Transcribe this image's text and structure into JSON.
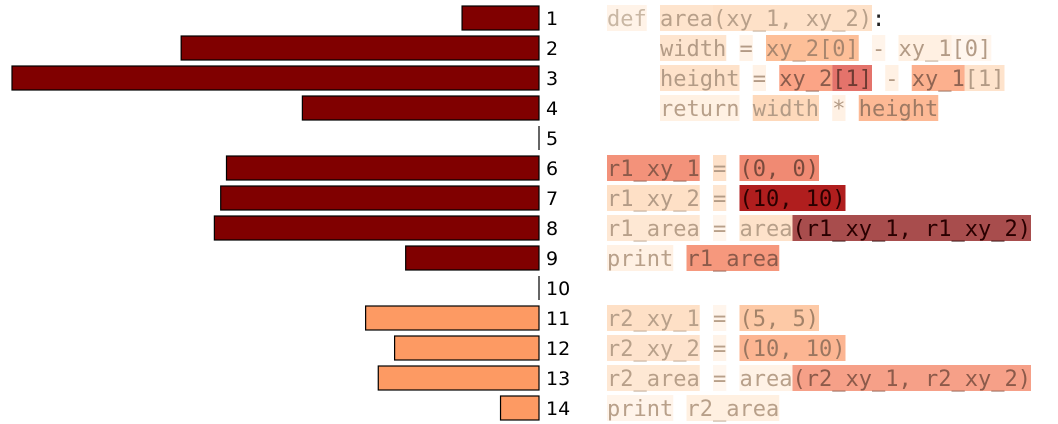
{
  "palette": {
    "high": "#800000",
    "low": "#fd9a63",
    "bar_stroke": "#000000"
  },
  "chart_data": {
    "type": "bar",
    "orientation": "horizontal",
    "title": "",
    "xlabel": "",
    "ylabel": "",
    "categories": [
      "1",
      "2",
      "3",
      "4",
      "5",
      "6",
      "7",
      "8",
      "9",
      "10",
      "11",
      "12",
      "13",
      "14"
    ],
    "values": [
      0.146,
      0.679,
      1.0,
      0.449,
      0,
      0.593,
      0.604,
      0.616,
      0.253,
      0,
      0.329,
      0.274,
      0.305,
      0.073
    ],
    "bar_group": [
      "high",
      "high",
      "high",
      "high",
      "none",
      "high",
      "high",
      "high",
      "high",
      "none",
      "low",
      "low",
      "low",
      "low"
    ]
  },
  "code": {
    "lines": [
      [
        {
          "t": "def",
          "bg": "#fff3e8",
          "fg": "#c9b7a4"
        },
        {
          "t": " ",
          "bg": "",
          "fg": ""
        },
        {
          "t": "area",
          "bg": "#fee4cd",
          "fg": "#b8a08a"
        },
        {
          "t": "(xy_1, xy_2)",
          "bg": "#fee1c8",
          "fg": "#b8a08a"
        },
        {
          "t": ":",
          "bg": "",
          "fg": "#222222"
        }
      ],
      [
        {
          "t": "    ",
          "bg": "",
          "fg": ""
        },
        {
          "t": "width",
          "bg": "#fee5cf",
          "fg": "#b39b86"
        },
        {
          "t": " ",
          "bg": "",
          "fg": ""
        },
        {
          "t": "=",
          "bg": "#fff2e6",
          "fg": "#b39b86"
        },
        {
          "t": " ",
          "bg": "",
          "fg": ""
        },
        {
          "t": "xy_2[0]",
          "bg": "#fdbf98",
          "fg": "#a8866e"
        },
        {
          "t": " ",
          "bg": "",
          "fg": ""
        },
        {
          "t": "-",
          "bg": "#fff4ea",
          "fg": "#b39b86"
        },
        {
          "t": " ",
          "bg": "",
          "fg": ""
        },
        {
          "t": "xy_1",
          "bg": "#fff0e2",
          "fg": "#b39b86"
        },
        {
          "t": "[0]",
          "bg": "#fff6ee",
          "fg": "#b39b86"
        }
      ],
      [
        {
          "t": "    ",
          "bg": "",
          "fg": ""
        },
        {
          "t": "height",
          "bg": "#fee2ca",
          "fg": "#b39b86"
        },
        {
          "t": " ",
          "bg": "",
          "fg": ""
        },
        {
          "t": "=",
          "bg": "#fff2e6",
          "fg": "#b39b86"
        },
        {
          "t": " ",
          "bg": "",
          "fg": ""
        },
        {
          "t": "xy_2",
          "bg": "#fba486",
          "fg": "#8a5c4c"
        },
        {
          "t": "[1]",
          "bg": "#e4736b",
          "fg": "#6e3a32"
        },
        {
          "t": " ",
          "bg": "",
          "fg": ""
        },
        {
          "t": "-",
          "bg": "#fff1e4",
          "fg": "#b39b86"
        },
        {
          "t": " ",
          "bg": "",
          "fg": ""
        },
        {
          "t": "xy_1",
          "bg": "#fcb08e",
          "fg": "#8f6452"
        },
        {
          "t": "[1]",
          "bg": "#fee3cc",
          "fg": "#b39b86"
        }
      ],
      [
        {
          "t": "    ",
          "bg": "",
          "fg": ""
        },
        {
          "t": "return",
          "bg": "#fff1e3",
          "fg": "#b8a08a"
        },
        {
          "t": " ",
          "bg": "",
          "fg": ""
        },
        {
          "t": "width",
          "bg": "#fed9bb",
          "fg": "#b39b86"
        },
        {
          "t": " ",
          "bg": "",
          "fg": ""
        },
        {
          "t": "*",
          "bg": "#fff1e4",
          "fg": "#b39b86"
        },
        {
          "t": " ",
          "bg": "",
          "fg": ""
        },
        {
          "t": "height",
          "bg": "#fdb995",
          "fg": "#9e7a64"
        }
      ],
      [],
      [
        {
          "t": "r1_xy_1",
          "bg": "#f3927a",
          "fg": "#8c5a4a"
        },
        {
          "t": " ",
          "bg": "",
          "fg": ""
        },
        {
          "t": "=",
          "bg": "#fee1c9",
          "fg": "#b39b86"
        },
        {
          "t": " ",
          "bg": "",
          "fg": ""
        },
        {
          "t": "(0, 0)",
          "bg": "#f08a73",
          "fg": "#7a4a3c"
        }
      ],
      [
        {
          "t": "r1_xy_2",
          "bg": "#fee0c6",
          "fg": "#b39b86"
        },
        {
          "t": " ",
          "bg": "",
          "fg": ""
        },
        {
          "t": "=",
          "bg": "#fee6d1",
          "fg": "#b39b86"
        },
        {
          "t": " ",
          "bg": "",
          "fg": ""
        },
        {
          "t": "(10, 10)",
          "bg": "#b01e1e",
          "fg": "#2a0000"
        }
      ],
      [
        {
          "t": "r1_area",
          "bg": "#fee8d4",
          "fg": "#b8a08a"
        },
        {
          "t": " ",
          "bg": "",
          "fg": ""
        },
        {
          "t": "=",
          "bg": "#fff5ec",
          "fg": "#b8a08a"
        },
        {
          "t": " ",
          "bg": "",
          "fg": ""
        },
        {
          "t": "area",
          "bg": "#fee2ca",
          "fg": "#b8a08a"
        },
        {
          "t": "(r1_xy_1, r1_xy_2)",
          "bg": "#a84d4d",
          "fg": "#2a0000"
        }
      ],
      [
        {
          "t": "print",
          "bg": "#fff1e4",
          "fg": "#b8a08a"
        },
        {
          "t": " ",
          "bg": "",
          "fg": ""
        },
        {
          "t": "r1_area",
          "bg": "#f6987d",
          "fg": "#8c5a4a"
        }
      ],
      [],
      [
        {
          "t": "r2_xy_1",
          "bg": "#fee0c6",
          "fg": "#b8a08a"
        },
        {
          "t": " ",
          "bg": "",
          "fg": ""
        },
        {
          "t": "=",
          "bg": "#fff5ec",
          "fg": "#b8a08a"
        },
        {
          "t": " ",
          "bg": "",
          "fg": ""
        },
        {
          "t": "(5, 5)",
          "bg": "#fdc9a6",
          "fg": "#a38268"
        }
      ],
      [
        {
          "t": "r2_xy_2",
          "bg": "#fee3cd",
          "fg": "#b8a08a"
        },
        {
          "t": " ",
          "bg": "",
          "fg": ""
        },
        {
          "t": "=",
          "bg": "#fff3e8",
          "fg": "#b8a08a"
        },
        {
          "t": " ",
          "bg": "",
          "fg": ""
        },
        {
          "t": "(10, 10)",
          "bg": "#fcb592",
          "fg": "#9a7660"
        }
      ],
      [
        {
          "t": "r2_area",
          "bg": "#fee8d4",
          "fg": "#b8a08a"
        },
        {
          "t": " ",
          "bg": "",
          "fg": ""
        },
        {
          "t": "=",
          "bg": "#fff6ee",
          "fg": "#b8a08a"
        },
        {
          "t": " ",
          "bg": "",
          "fg": ""
        },
        {
          "t": "area",
          "bg": "#fff2e6",
          "fg": "#b8a08a"
        },
        {
          "t": "(r2_xy_1, r2_xy_2)",
          "bg": "#f6a088",
          "fg": "#8c5a4a"
        }
      ],
      [
        {
          "t": "print",
          "bg": "#fff4ea",
          "fg": "#b8a08a"
        },
        {
          "t": " ",
          "bg": "",
          "fg": ""
        },
        {
          "t": "r2_area",
          "bg": "#fff0e1",
          "fg": "#b8a08a"
        }
      ]
    ]
  }
}
